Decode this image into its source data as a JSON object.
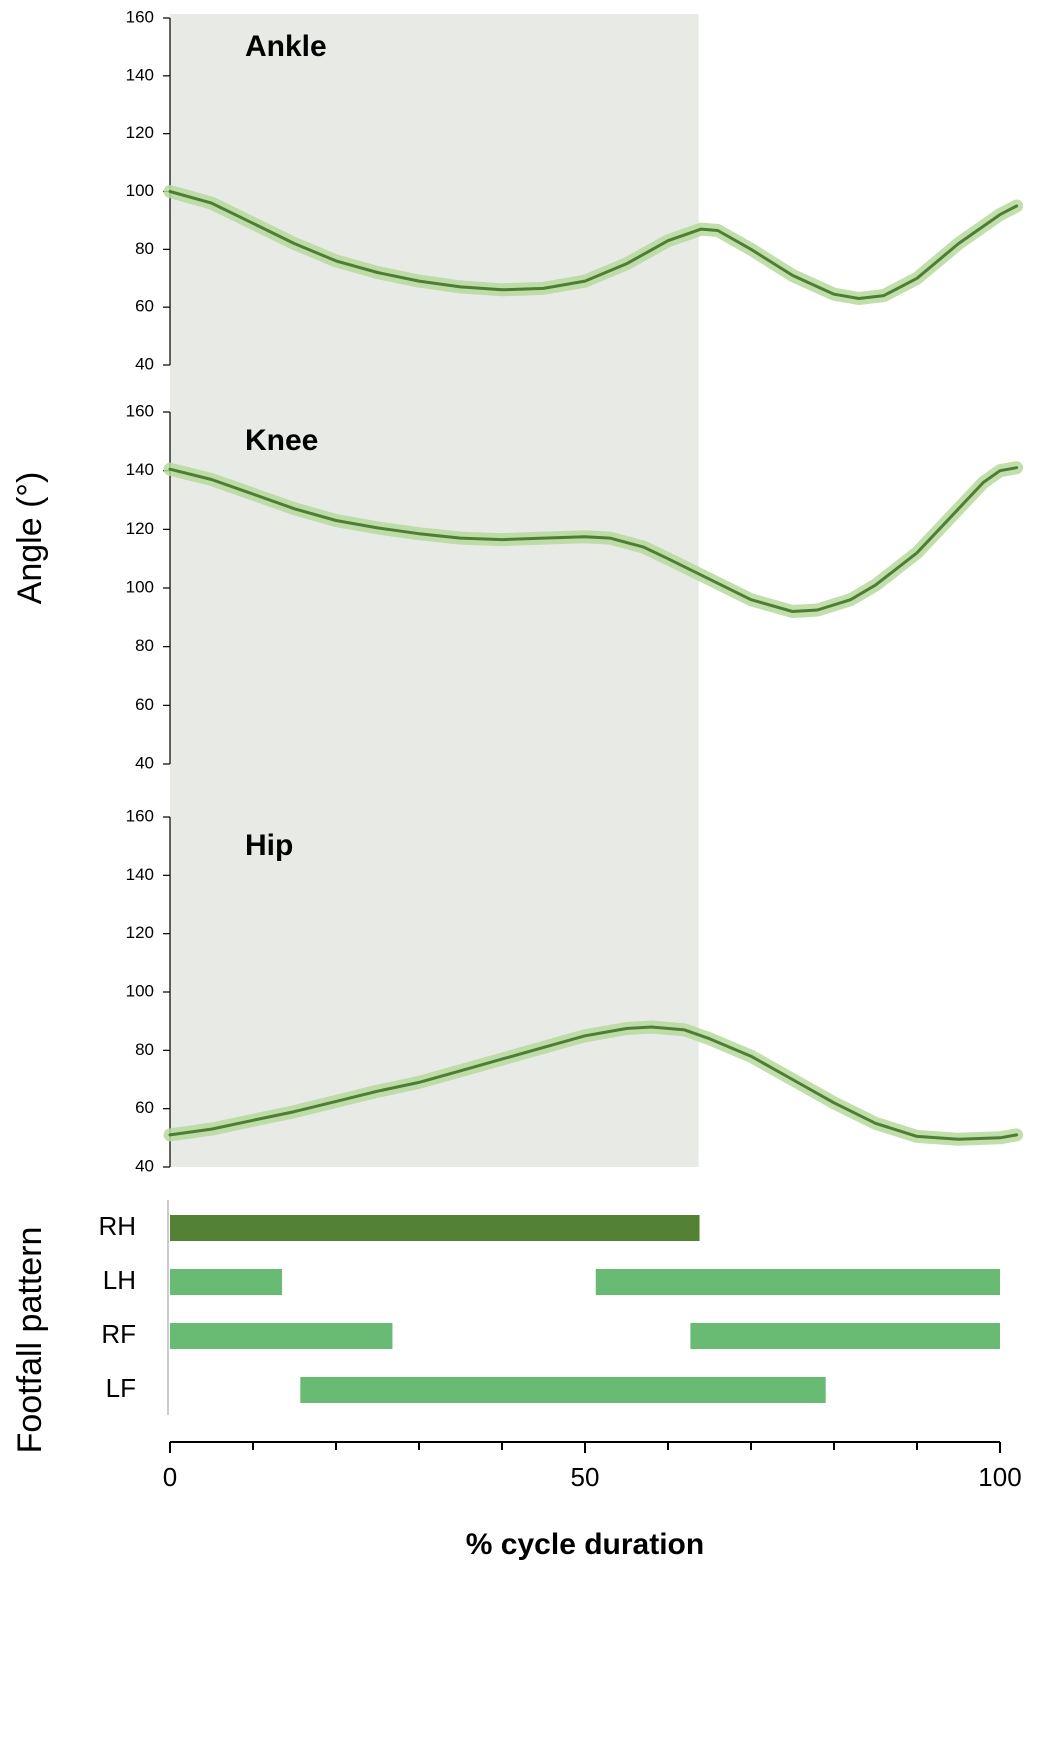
{
  "chart_data": [
    {
      "type": "line",
      "title": "Ankle",
      "color": "#4e7d35",
      "band_color": "#b5d99c",
      "shade_color": "#e8ebe5",
      "x": [
        0,
        5,
        10,
        15,
        20,
        25,
        30,
        35,
        40,
        45,
        50,
        55,
        60,
        64,
        66,
        70,
        75,
        80,
        83,
        86,
        90,
        95,
        100,
        102
      ],
      "values": [
        100,
        96,
        89,
        82,
        76,
        72,
        69,
        67,
        66,
        66.5,
        69,
        75,
        83,
        87,
        86.5,
        80,
        71,
        64.5,
        63,
        64,
        70,
        82,
        92,
        95
      ],
      "shade": [
        0,
        63.7
      ],
      "xlim": [
        0,
        100
      ],
      "ylim": [
        40,
        160
      ],
      "yticks": [
        40,
        60,
        80,
        100,
        120,
        140,
        160
      ]
    },
    {
      "type": "line",
      "title": "Knee",
      "ylabel": "Angle (°)",
      "color": "#4e7d35",
      "band_color": "#b5d99c",
      "shade_color": "#e8ebe5",
      "x": [
        0,
        5,
        10,
        15,
        20,
        25,
        30,
        35,
        40,
        45,
        50,
        53,
        57,
        60,
        65,
        70,
        75,
        78,
        82,
        85,
        90,
        95,
        98,
        100,
        102
      ],
      "values": [
        140.5,
        137,
        132,
        127,
        123,
        120.5,
        118.5,
        117,
        116.5,
        117,
        117.5,
        117,
        114,
        110,
        103,
        96,
        92,
        92.5,
        96,
        101,
        112,
        127,
        136,
        140,
        141
      ],
      "shade": [
        0,
        63.7
      ],
      "xlim": [
        0,
        100
      ],
      "ylim": [
        40,
        160
      ],
      "yticks": [
        40,
        60,
        80,
        100,
        120,
        140,
        160
      ]
    },
    {
      "type": "line",
      "title": "Hip",
      "color": "#4e7d35",
      "band_color": "#b5d99c",
      "shade_color": "#e8ebe5",
      "x": [
        0,
        5,
        10,
        15,
        20,
        25,
        30,
        35,
        40,
        45,
        50,
        55,
        58,
        62,
        65,
        70,
        75,
        80,
        85,
        90,
        95,
        100,
        102
      ],
      "values": [
        51,
        53,
        56,
        59,
        62.5,
        66,
        69,
        73,
        77,
        81,
        85,
        87.5,
        88,
        87,
        84,
        78,
        70,
        62,
        55,
        50.5,
        49.5,
        50,
        51
      ],
      "shade": [
        0,
        63.7
      ],
      "xlim": [
        0,
        100
      ],
      "ylim": [
        40,
        160
      ],
      "yticks": [
        40,
        60,
        80,
        100,
        120,
        140,
        160
      ]
    },
    {
      "type": "range-bar",
      "ylabel": "Footfall pattern",
      "xlabel": "% cycle duration",
      "categories": [
        "RH",
        "LH",
        "RF",
        "LF"
      ],
      "colors": [
        "#548235",
        "#69bb74",
        "#69bb74",
        "#69bb74"
      ],
      "ranges": [
        [
          [
            0,
            63.8
          ]
        ],
        [
          [
            0,
            13.5
          ],
          [
            51.3,
            100
          ]
        ],
        [
          [
            0,
            26.8
          ],
          [
            62.7,
            100
          ]
        ],
        [
          [
            15.7,
            79
          ]
        ]
      ],
      "xlim": [
        0,
        100
      ],
      "xticks": [
        0,
        50,
        100
      ],
      "xminorticks": [
        10,
        20,
        30,
        40,
        60,
        70,
        80,
        90
      ]
    }
  ]
}
